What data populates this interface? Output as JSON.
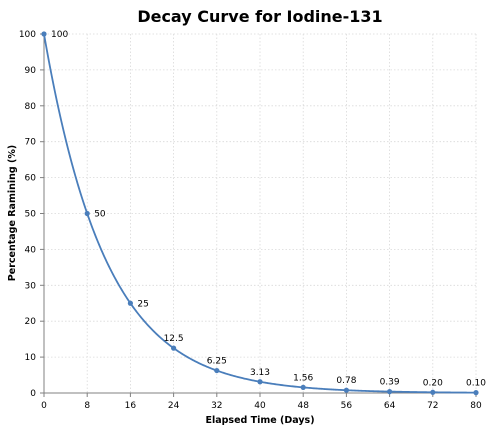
{
  "chart_data": {
    "type": "line",
    "title": "Decay Curve for Iodine-131",
    "xlabel": "Elapsed Time (Days)",
    "ylabel": "Percentage Ramining (%)",
    "x": [
      0,
      8,
      16,
      24,
      32,
      40,
      48,
      56,
      64,
      72,
      80
    ],
    "xlim": [
      0,
      80
    ],
    "ylim": [
      0,
      100
    ],
    "x_ticks": [
      "0",
      "8",
      "16",
      "24",
      "32",
      "40",
      "48",
      "56",
      "64",
      "72",
      "80"
    ],
    "y_ticks": [
      "0",
      "10",
      "20",
      "30",
      "40",
      "50",
      "60",
      "70",
      "80",
      "90",
      "100"
    ],
    "grid": true,
    "line_color": "#4a7ebb",
    "series": [
      {
        "values": [
          100,
          50,
          25,
          12.5,
          6.25,
          3.13,
          1.56,
          0.78,
          0.39,
          0.2,
          0.1
        ],
        "labels": [
          "100",
          "50",
          "25",
          "12.5",
          "6.25",
          "3.13",
          "1.56",
          "0.78",
          "0.39",
          "0.20",
          "0.10"
        ]
      }
    ]
  }
}
